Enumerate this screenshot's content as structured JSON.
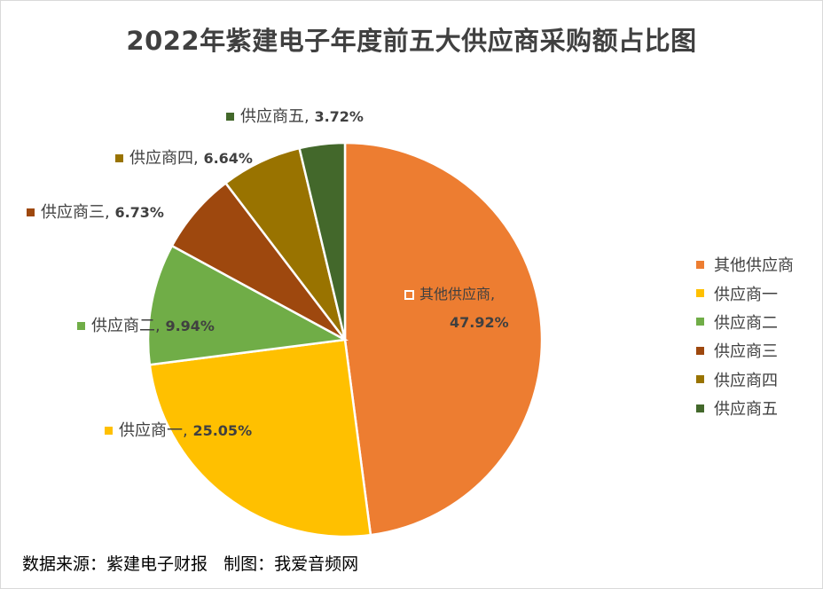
{
  "chart_data": {
    "type": "pie",
    "title": "2022年紫建电子年度前五大供应商采购额占比图",
    "categories": [
      "其他供应商",
      "供应商一",
      "供应商二",
      "供应商三",
      "供应商四",
      "供应商五"
    ],
    "values": [
      47.92,
      25.05,
      9.94,
      6.73,
      6.64,
      3.72
    ],
    "value_labels": [
      "47.92%",
      "25.05%",
      "9.94%",
      "6.73%",
      "6.64%",
      "3.72%"
    ],
    "colors": [
      "#ED7D31",
      "#FFC000",
      "#70AD47",
      "#9E480E",
      "#997300",
      "#43682B"
    ],
    "legend": "right",
    "start_angle_deg": 0,
    "direction": "clockwise"
  },
  "footer": {
    "source": "数据来源：紫建电子财报",
    "credit": "制图：我爱音频网"
  }
}
